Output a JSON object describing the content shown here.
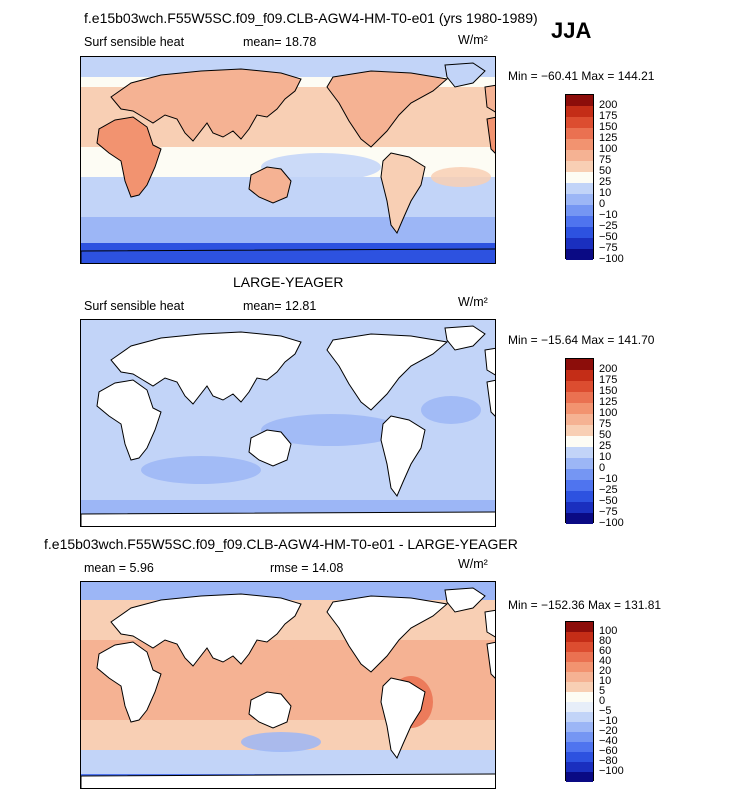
{
  "season": "JJA",
  "colors": {
    "abs": [
      "#0a0a84",
      "#1a2fbf",
      "#2d52e0",
      "#4f74ef",
      "#7596f3",
      "#9cb6f6",
      "#c2d4f8",
      "#fdfcf4",
      "#f8cfb4",
      "#f5b293",
      "#f29370",
      "#ea7151",
      "#dc4d30",
      "#c42d17",
      "#8c0d0a"
    ],
    "diff": [
      "#0a0a84",
      "#1a2fbf",
      "#2d52e0",
      "#4f74ef",
      "#7596f3",
      "#9cb6f6",
      "#c2d4f8",
      "#e7eef9",
      "#fdfcf4",
      "#f8cfb4",
      "#f5b293",
      "#f29370",
      "#ea7151",
      "#dc4d30",
      "#c42d17",
      "#8c0d0a"
    ],
    "land": "#ffffff",
    "coast": "#000000"
  },
  "panel1": {
    "title": "f.e15b03wch.F55W5SC.f09_f09.CLB-AGW4-HM-T0-e01 (yrs 1980-1989)",
    "variable": "Surf sensible heat",
    "mean_text": "mean=  18.78",
    "units": "W/m²",
    "minmax": "Min = −60.41 Max = 144.21",
    "ticks": [
      "200",
      "175",
      "150",
      "125",
      "100",
      "75",
      "50",
      "25",
      "10",
      "0",
      "−10",
      "−25",
      "−50",
      "−75",
      "−100"
    ],
    "land_shaded": true
  },
  "panel2": {
    "title": "LARGE-YEAGER",
    "variable": "Surf sensible heat",
    "mean_text": "mean=  12.81",
    "units": "W/m²",
    "minmax": "Min = −15.64 Max = 141.70",
    "ticks": [
      "200",
      "175",
      "150",
      "125",
      "100",
      "75",
      "50",
      "25",
      "10",
      "0",
      "−10",
      "−25",
      "−50",
      "−75",
      "−100"
    ],
    "land_shaded": false
  },
  "panel3": {
    "title": "f.e15b03wch.F55W5SC.f09_f09.CLB-AGW4-HM-T0-e01 - LARGE-YEAGER",
    "mean_text": "mean =   5.96",
    "rmse_text": "rmse =   14.08",
    "units": "W/m²",
    "minmax": "Min = −152.36 Max = 131.81",
    "ticks": [
      "100",
      "80",
      "60",
      "40",
      "20",
      "10",
      "5",
      "0",
      "−5",
      "−10",
      "−20",
      "−40",
      "−60",
      "−80",
      "−100"
    ],
    "land_shaded": false
  },
  "chart_data": [
    {
      "type": "heatmap",
      "title": "f.e15b03wch.F55W5SC.f09_f09.CLB-AGW4-HM-T0-e01 (yrs 1980-1989)",
      "variable": "Surf sensible heat",
      "units": "W/m2",
      "mean": 18.78,
      "min": -60.41,
      "max": 144.21,
      "levels": [
        -100,
        -75,
        -50,
        -25,
        -10,
        0,
        10,
        25,
        50,
        75,
        100,
        125,
        150,
        175,
        200
      ],
      "season": "JJA"
    },
    {
      "type": "heatmap",
      "title": "LARGE-YEAGER",
      "variable": "Surf sensible heat",
      "units": "W/m2",
      "mean": 12.81,
      "min": -15.64,
      "max": 141.7,
      "levels": [
        -100,
        -75,
        -50,
        -25,
        -10,
        0,
        10,
        25,
        50,
        75,
        100,
        125,
        150,
        175,
        200
      ]
    },
    {
      "type": "heatmap",
      "title": "f.e15b03wch.F55W5SC.f09_f09.CLB-AGW4-HM-T0-e01 - LARGE-YEAGER",
      "units": "W/m2",
      "mean": 5.96,
      "rmse": 14.08,
      "min": -152.36,
      "max": 131.81,
      "levels": [
        -100,
        -80,
        -60,
        -40,
        -20,
        -10,
        -5,
        0,
        5,
        10,
        20,
        40,
        60,
        80,
        100
      ]
    }
  ]
}
